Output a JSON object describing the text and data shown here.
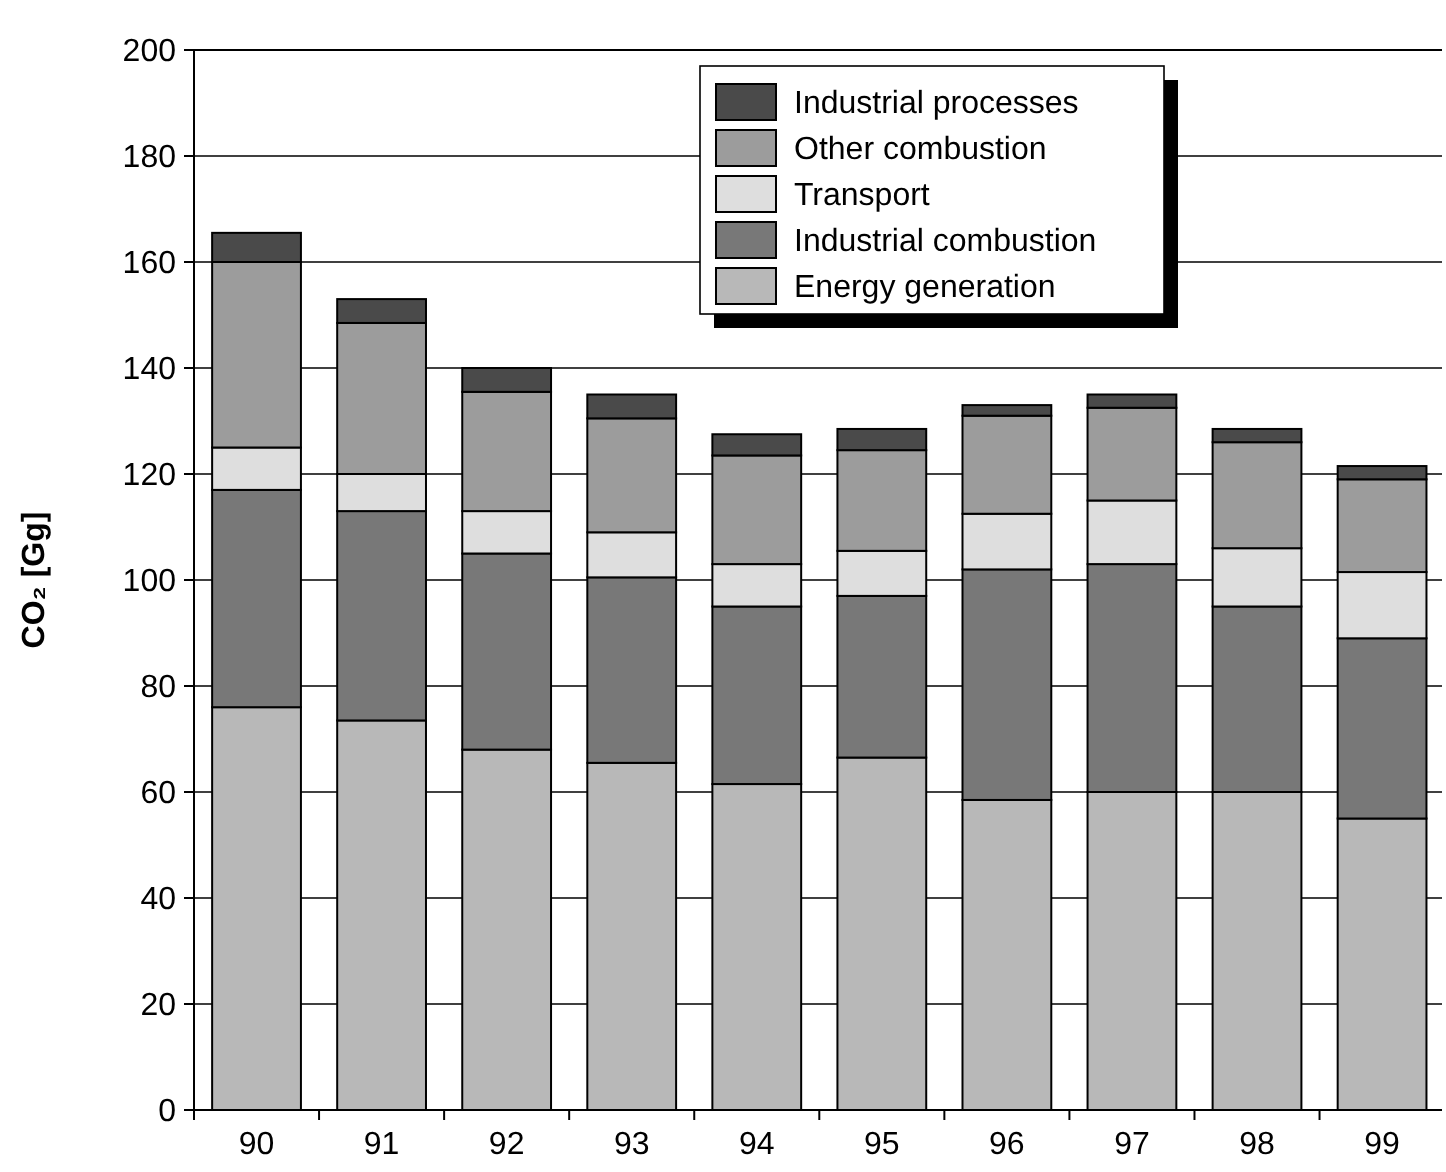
{
  "chart_data": {
    "type": "bar",
    "stacked": true,
    "ylabel": "CO₂ [Gg]",
    "categories": [
      "90",
      "91",
      "92",
      "93",
      "94",
      "95",
      "96",
      "97",
      "98",
      "99"
    ],
    "series": [
      {
        "name": "Energy generation",
        "color": "#b8b8b8",
        "values": [
          76,
          73.5,
          68,
          65.5,
          61.5,
          66.5,
          58.5,
          60,
          60,
          55
        ]
      },
      {
        "name": "Industrial combustion",
        "color": "#787878",
        "values": [
          41,
          39.5,
          37,
          35,
          33.5,
          30.5,
          43.5,
          43,
          35,
          34
        ]
      },
      {
        "name": "Transport",
        "color": "#dedede",
        "values": [
          8,
          7,
          8,
          8.5,
          8,
          8.5,
          10.5,
          12,
          11,
          12.5
        ]
      },
      {
        "name": "Other combustion",
        "color": "#9c9c9c",
        "values": [
          35,
          28.5,
          22.5,
          21.5,
          20.5,
          19,
          18.5,
          17.5,
          20,
          17.5
        ]
      },
      {
        "name": "Industrial processes",
        "color": "#4a4a4a",
        "values": [
          5.5,
          4.5,
          4.5,
          4.5,
          4,
          4,
          2,
          2.5,
          2.5,
          2.5
        ]
      }
    ],
    "ylim": [
      0,
      200
    ],
    "yticks": [
      0,
      20,
      40,
      60,
      80,
      100,
      120,
      140,
      160,
      180,
      200
    ],
    "grid": "y",
    "legend": "top right"
  }
}
